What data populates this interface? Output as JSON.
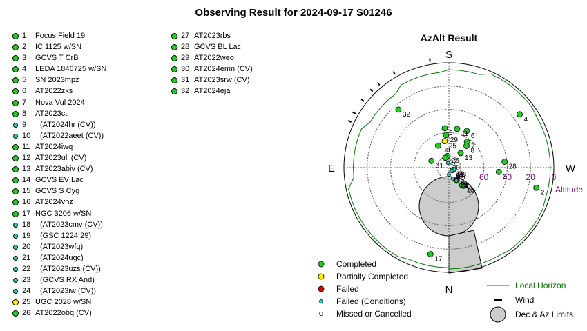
{
  "title": "Observing Result for 2024-09-17 S01246",
  "targets_left": [
    {
      "num": "1",
      "name": "Focus Field 19",
      "status": "completed"
    },
    {
      "num": "2",
      "name": "IC 1125 w/SN",
      "status": "completed"
    },
    {
      "num": "3",
      "name": "GCVS T CrB",
      "status": "completed"
    },
    {
      "num": "4",
      "name": "LEDA 1846725 w/SN",
      "status": "completed"
    },
    {
      "num": "5",
      "name": "SN 2023mpz",
      "status": "completed"
    },
    {
      "num": "6",
      "name": "AT2022zks",
      "status": "completed"
    },
    {
      "num": "7",
      "name": "Nova Vul 2024",
      "status": "completed"
    },
    {
      "num": "8",
      "name": "AT2023cti",
      "status": "completed"
    },
    {
      "num": "9",
      "name": "(AT2024hr (CV))",
      "status": "failed_conditions"
    },
    {
      "num": "10",
      "name": "(AT2022aeet (CV))",
      "status": "failed_conditions"
    },
    {
      "num": "11",
      "name": "AT2024iwq",
      "status": "completed"
    },
    {
      "num": "12",
      "name": "AT2023uli (CV)",
      "status": "completed"
    },
    {
      "num": "13",
      "name": "AT2023abiv (CV)",
      "status": "completed"
    },
    {
      "num": "14",
      "name": "GCVS EV Lac",
      "status": "completed"
    },
    {
      "num": "15",
      "name": "GCVS S Cyg",
      "status": "completed"
    },
    {
      "num": "16",
      "name": "AT2024vhz",
      "status": "completed"
    },
    {
      "num": "17",
      "name": "NGC 3206 w/SN",
      "status": "completed"
    },
    {
      "num": "18",
      "name": "(AT2023cmv (CV))",
      "status": "failed_conditions"
    },
    {
      "num": "19",
      "name": "(GSC 1224:29)",
      "status": "failed_conditions"
    },
    {
      "num": "20",
      "name": "(AT2023wfq)",
      "status": "failed_conditions"
    },
    {
      "num": "21",
      "name": "(AT2024ugc)",
      "status": "failed_conditions"
    },
    {
      "num": "22",
      "name": "(AT2023uzs (CV))",
      "status": "failed_conditions"
    },
    {
      "num": "23",
      "name": "(GCVS RX And)",
      "status": "failed_conditions"
    },
    {
      "num": "24",
      "name": "(AT2023iw (CV))",
      "status": "failed_conditions"
    },
    {
      "num": "25",
      "name": "UGC 2028 w/SN",
      "status": "partial"
    },
    {
      "num": "26",
      "name": "AT2022obq (CV)",
      "status": "completed"
    }
  ],
  "targets_right": [
    {
      "num": "27",
      "name": "AT2023rbs",
      "status": "completed"
    },
    {
      "num": "28",
      "name": "GCVS BL Lac",
      "status": "completed"
    },
    {
      "num": "29",
      "name": "AT2022weo",
      "status": "completed"
    },
    {
      "num": "30",
      "name": "AT2024emn (CV)",
      "status": "completed"
    },
    {
      "num": "31",
      "name": "AT2023srw (CV)",
      "status": "completed"
    },
    {
      "num": "32",
      "name": "AT2024eja",
      "status": "completed"
    }
  ],
  "status_colors": {
    "completed": "#22cc22",
    "partial": "#ffee00",
    "failed": "#dd0000",
    "failed_conditions": "#22cccc",
    "missed": "#ffffff"
  },
  "chart_data": {
    "type": "polar-scatter",
    "title": "AzAlt Result",
    "directions": {
      "top": "S",
      "bottom": "N",
      "left": "E",
      "right": "W"
    },
    "altitude_label": "Altitude",
    "altitude_ticks": [
      {
        "alt": 0,
        "label": "0"
      },
      {
        "alt": 20,
        "label": "20"
      },
      {
        "alt": 40,
        "label": "40"
      },
      {
        "alt": 60,
        "label": "60"
      },
      {
        "alt": 80,
        "label": "80"
      }
    ],
    "points": [
      {
        "id": "2",
        "az": 283,
        "alt": 13,
        "status": "completed"
      },
      {
        "id": "3",
        "az": 275,
        "alt": 47,
        "status": "completed"
      },
      {
        "id": "4",
        "az": 233,
        "alt": 14,
        "status": "completed"
      },
      {
        "id": "5",
        "az": 174,
        "alt": 56,
        "status": "completed"
      },
      {
        "id": "6",
        "az": 206,
        "alt": 55,
        "status": "completed"
      },
      {
        "id": "7",
        "az": 215,
        "alt": 63,
        "status": "completed"
      },
      {
        "id": "8",
        "az": 219,
        "alt": 66,
        "status": "completed"
      },
      {
        "id": "9",
        "az": 318,
        "alt": 86,
        "status": "failed_conditions"
      },
      {
        "id": "10",
        "az": 300,
        "alt": 87,
        "status": "failed_conditions"
      },
      {
        "id": "11",
        "az": 192,
        "alt": 56,
        "status": "completed"
      },
      {
        "id": "12",
        "az": 300,
        "alt": 86,
        "status": "completed"
      },
      {
        "id": "13",
        "az": 219,
        "alt": 74,
        "status": "completed"
      },
      {
        "id": "14",
        "az": 330,
        "alt": 77,
        "status": "completed"
      },
      {
        "id": "15",
        "az": 321,
        "alt": 70,
        "status": "completed"
      },
      {
        "id": "16",
        "az": 323,
        "alt": 71,
        "status": "completed"
      },
      {
        "id": "17",
        "az": 12,
        "alt": 14,
        "status": "completed"
      },
      {
        "id": "18",
        "az": 340,
        "alt": 80,
        "status": "failed_conditions"
      },
      {
        "id": "19",
        "az": 330,
        "alt": 78,
        "status": "failed_conditions"
      },
      {
        "id": "20",
        "az": 170,
        "alt": 86,
        "status": "failed_conditions"
      },
      {
        "id": "21",
        "az": 330,
        "alt": 77,
        "status": "failed_conditions"
      },
      {
        "id": "22",
        "az": 0,
        "alt": 84,
        "status": "failed_conditions"
      },
      {
        "id": "23",
        "az": 290,
        "alt": 85,
        "status": "failed_conditions"
      },
      {
        "id": "24",
        "az": 320,
        "alt": 86,
        "status": "failed_conditions"
      },
      {
        "id": "25",
        "az": 171,
        "alt": 67,
        "status": "partial"
      },
      {
        "id": "26",
        "az": 173,
        "alt": 80,
        "status": "completed"
      },
      {
        "id": "27",
        "az": 160,
        "alt": 81,
        "status": "completed"
      },
      {
        "id": "28",
        "az": 264,
        "alt": 42,
        "status": "completed"
      },
      {
        "id": "29",
        "az": 175,
        "alt": 62,
        "status": "completed"
      },
      {
        "id": "30",
        "az": 154,
        "alt": 69,
        "status": "completed"
      },
      {
        "id": "31",
        "az": 111,
        "alt": 74,
        "status": "completed"
      },
      {
        "id": "32",
        "az": 139,
        "alt": 24,
        "status": "completed"
      }
    ],
    "wind_marks_az": [
      170,
      150,
      140,
      135,
      128,
      120,
      115
    ],
    "legend": {
      "completed": "Completed",
      "partial": "Partially Completed",
      "failed": "Failed",
      "failed_conditions": "Failed (Conditions)",
      "missed": "Missed or Cancelled",
      "local_horizon": "Local Horizon",
      "wind": "Wind",
      "limits": "Dec & Az Limits"
    },
    "horizon_color": "#007700",
    "limit_color": "#cccccc"
  }
}
